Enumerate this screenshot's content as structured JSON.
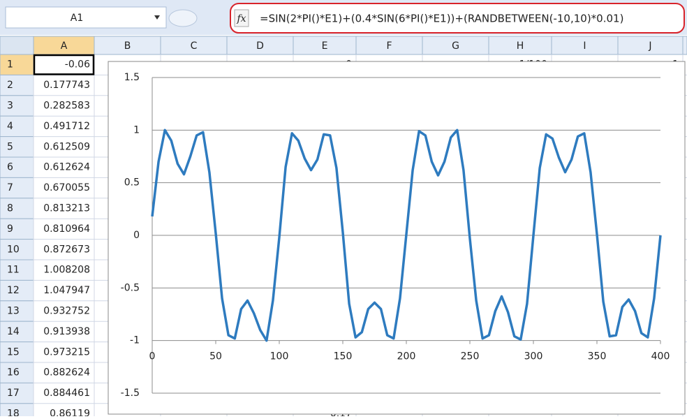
{
  "name_box": "A1",
  "formula": "=SIN(2*PI()*E1)+(0.4*SIN(6*PI()*E1))+(RANDBETWEEN(-10,10)*0.01)",
  "columns": [
    "A",
    "B",
    "C",
    "D",
    "E",
    "F",
    "G",
    "H",
    "I",
    "J"
  ],
  "rows": [
    {
      "label": "1",
      "A": "-0.06",
      "E": "0",
      "H": "1/100",
      "J": "1"
    },
    {
      "label": "2",
      "A": "0.177743"
    },
    {
      "label": "3",
      "A": "0.282583"
    },
    {
      "label": "4",
      "A": "0.491712"
    },
    {
      "label": "5",
      "A": "0.612509"
    },
    {
      "label": "6",
      "A": "0.612624"
    },
    {
      "label": "7",
      "A": "0.670055"
    },
    {
      "label": "8",
      "A": "0.813213"
    },
    {
      "label": "9",
      "A": "0.810964"
    },
    {
      "label": "10",
      "A": "0.872673"
    },
    {
      "label": "11",
      "A": "1.008208"
    },
    {
      "label": "12",
      "A": "1.047947"
    },
    {
      "label": "13",
      "A": "0.932752"
    },
    {
      "label": "14",
      "A": "0.913938"
    },
    {
      "label": "15",
      "A": "0.973215"
    },
    {
      "label": "16",
      "A": "0.882624"
    },
    {
      "label": "17",
      "A": "0.884461"
    },
    {
      "label": "18",
      "A": "0.86119",
      "E": "0.17"
    }
  ],
  "chart_data": {
    "type": "line",
    "x": [
      0,
      5,
      10,
      15,
      20,
      25,
      30,
      35,
      40,
      45,
      50,
      55,
      60,
      65,
      70,
      75,
      80,
      85,
      90,
      95,
      100,
      105,
      110,
      115,
      120,
      125,
      130,
      135,
      140,
      145,
      150,
      155,
      160,
      165,
      170,
      175,
      180,
      185,
      190,
      195,
      200,
      205,
      210,
      215,
      220,
      225,
      230,
      235,
      240,
      245,
      250,
      255,
      260,
      265,
      270,
      275,
      280,
      285,
      290,
      295,
      300,
      305,
      310,
      315,
      320,
      325,
      330,
      335,
      340,
      345,
      350,
      355,
      360,
      365,
      370,
      375,
      380,
      385,
      390,
      395,
      400
    ],
    "series": [
      {
        "color": "#2e7bbf",
        "values": [
          0.18,
          0.7,
          1.0,
          0.9,
          0.68,
          0.58,
          0.75,
          0.95,
          0.98,
          0.6,
          0.02,
          -0.6,
          -0.95,
          -0.98,
          -0.7,
          -0.62,
          -0.74,
          -0.9,
          -1.0,
          -0.62,
          -0.02,
          0.65,
          0.97,
          0.9,
          0.73,
          0.62,
          0.72,
          0.96,
          0.95,
          0.64,
          0.03,
          -0.65,
          -0.97,
          -0.92,
          -0.7,
          -0.64,
          -0.7,
          -0.95,
          -0.98,
          -0.6,
          0.01,
          0.62,
          0.99,
          0.95,
          0.7,
          0.57,
          0.7,
          0.93,
          1.0,
          0.62,
          -0.03,
          -0.62,
          -0.98,
          -0.95,
          -0.72,
          -0.58,
          -0.73,
          -0.96,
          -0.99,
          -0.65,
          0.0,
          0.64,
          0.96,
          0.92,
          0.74,
          0.6,
          0.72,
          0.94,
          0.97,
          0.6,
          0.01,
          -0.63,
          -0.96,
          -0.95,
          -0.68,
          -0.61,
          -0.72,
          -0.93,
          -0.97,
          -0.6,
          0.0
        ]
      }
    ],
    "xlim": [
      0,
      400
    ],
    "xticks": [
      0,
      50,
      100,
      150,
      200,
      250,
      300,
      350,
      400
    ],
    "ylim": [
      -1.5,
      1.5
    ],
    "yticks": [
      -1.5,
      -1,
      -0.5,
      0,
      0.5,
      1,
      1.5
    ],
    "x_axis_at": -1,
    "grid": true
  }
}
